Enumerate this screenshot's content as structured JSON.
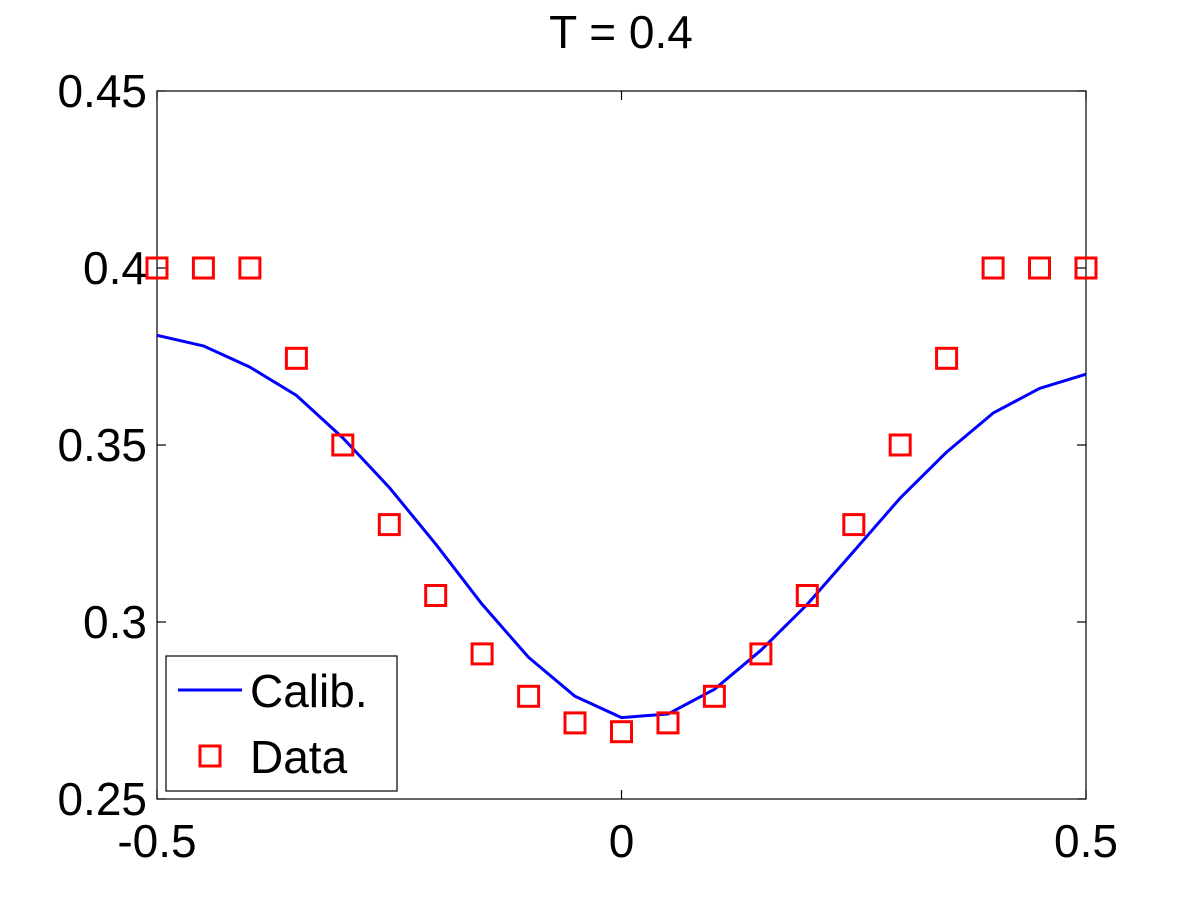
{
  "chart_data": {
    "type": "line",
    "title": "T = 0.4",
    "xlabel": "",
    "ylabel": "",
    "xlim": [
      -0.5,
      0.5
    ],
    "ylim": [
      0.25,
      0.45
    ],
    "x_ticks": [
      -0.5,
      0,
      0.5
    ],
    "x_tick_labels": [
      "-0.5",
      "0",
      "0.5"
    ],
    "y_ticks": [
      0.25,
      0.3,
      0.35,
      0.4,
      0.45
    ],
    "y_tick_labels": [
      "0.25",
      "0.3",
      "0.35",
      "0.4",
      "0.45"
    ],
    "grid": false,
    "legend_position": "bottom-left",
    "series": [
      {
        "name": "Calib.",
        "type": "line",
        "color": "#0000ff",
        "x": [
          -0.5,
          -0.45,
          -0.4,
          -0.35,
          -0.3,
          -0.25,
          -0.2,
          -0.15,
          -0.1,
          -0.05,
          0,
          0.05,
          0.1,
          0.15,
          0.2,
          0.25,
          0.3,
          0.35,
          0.4,
          0.45,
          0.5
        ],
        "y": [
          0.381,
          0.378,
          0.372,
          0.364,
          0.352,
          0.338,
          0.322,
          0.305,
          0.29,
          0.279,
          0.273,
          0.274,
          0.281,
          0.292,
          0.305,
          0.32,
          0.335,
          0.348,
          0.359,
          0.366,
          0.37
        ]
      },
      {
        "name": "Data",
        "type": "scatter",
        "marker": "square",
        "color": "#ff0000",
        "x": [
          -0.5,
          -0.45,
          -0.4,
          -0.35,
          -0.3,
          -0.25,
          -0.2,
          -0.15,
          -0.1,
          -0.05,
          0,
          0.05,
          0.1,
          0.15,
          0.2,
          0.25,
          0.3,
          0.35,
          0.4,
          0.45,
          0.5
        ],
        "y": [
          0.4,
          0.4,
          0.4,
          0.3745,
          0.35,
          0.3275,
          0.3075,
          0.291,
          0.279,
          0.2715,
          0.269,
          0.2715,
          0.279,
          0.291,
          0.3075,
          0.3275,
          0.35,
          0.3745,
          0.4,
          0.4,
          0.4
        ]
      }
    ]
  }
}
